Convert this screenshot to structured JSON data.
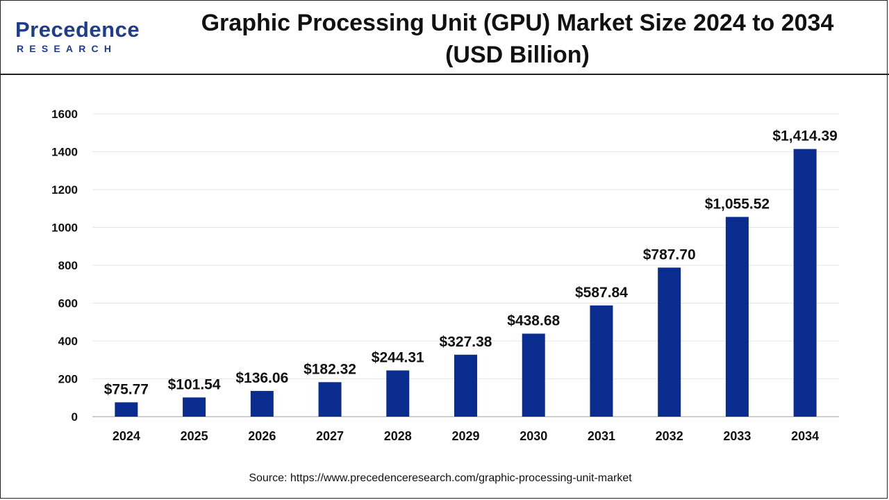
{
  "header": {
    "logo_main": "Precedence",
    "logo_sub": "RESEARCH",
    "title_line1": "Graphic Processing Unit (GPU) Market Size 2024 to 2034",
    "title_line2": "(USD Billion)"
  },
  "source": "Source: https://www.precedenceresearch.com/graphic-processing-unit-market",
  "colors": {
    "bar": "#0a2c8e",
    "grid": "#e6e6e6",
    "logo": "#1f3d8f",
    "logo_leaf": "#3a9b5c"
  },
  "chart_data": {
    "type": "bar",
    "categories": [
      "2024",
      "2025",
      "2026",
      "2027",
      "2028",
      "2029",
      "2030",
      "2031",
      "2032",
      "2033",
      "2034"
    ],
    "values": [
      75.77,
      101.54,
      136.06,
      182.32,
      244.31,
      327.38,
      438.68,
      587.84,
      787.7,
      1055.52,
      1414.39
    ],
    "data_labels": [
      "$75.77",
      "$101.54",
      "$136.06",
      "$182.32",
      "$244.31",
      "$327.38",
      "$438.68",
      "$587.84",
      "$787.70",
      "$1,055.52",
      "$1,414.39"
    ],
    "yticks": [
      0,
      200,
      400,
      600,
      800,
      1000,
      1200,
      1400,
      1600
    ],
    "ylim": [
      0,
      1600
    ],
    "grid": true
  }
}
